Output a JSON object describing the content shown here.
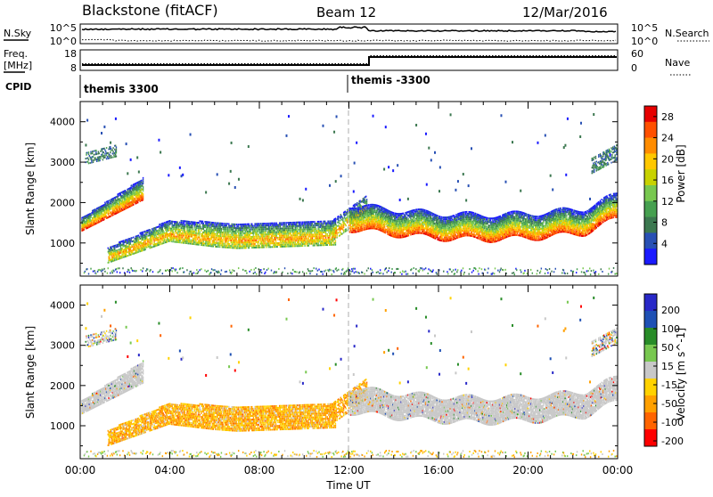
{
  "header": {
    "title": "Blackstone (fitACF)",
    "beam": "Beam 12",
    "date": "12/Mar/2016"
  },
  "nsky_panel": {
    "left_label": "N.Sky",
    "left_ticks": [
      "10^5",
      "10^0"
    ],
    "right_ticks": [
      "10^5",
      "10^0"
    ],
    "right_label": "N.Search"
  },
  "freq_panel": {
    "left_label_line1": "Freq.",
    "left_label_line2": "[MHz]",
    "left_ticks": [
      "18",
      "8"
    ],
    "right_ticks": [
      "60",
      "0"
    ],
    "right_label": "Nave"
  },
  "cpid_panel": {
    "label": "CPID",
    "segments": [
      {
        "start_hour": 0.0,
        "label": "themis 3300"
      },
      {
        "start_hour": 12.0,
        "label": "themis -3300"
      }
    ]
  },
  "colors": {
    "power_scale": [
      "#1a1aff",
      "#2850b4",
      "#3c7850",
      "#46a050",
      "#78c850",
      "#c8d200",
      "#ffc800",
      "#ff8c00",
      "#ff5000",
      "#e60000"
    ],
    "velocity_scale": [
      "#ff0000",
      "#ff6400",
      "#ffa000",
      "#ffd200",
      "#c8c8c8",
      "#78c850",
      "#288c28",
      "#1e50b4",
      "#2828c8"
    ],
    "ground_scatter": "#c8c8c8"
  },
  "chart_data": [
    {
      "type": "heatmap",
      "name": "power_panel",
      "xlabel": "",
      "ylabel": "Slant Range [km]",
      "xlim": [
        0,
        24
      ],
      "ylim": [
        180,
        4500
      ],
      "yticks": [
        "1000",
        "2000",
        "3000",
        "4000"
      ],
      "colorbar": {
        "label": "Power [dB]",
        "ticks": [
          "4",
          "8",
          "12",
          "16",
          "20",
          "24",
          "28"
        ],
        "range": [
          0,
          30
        ]
      },
      "vline_hour": 12.0
    },
    {
      "type": "heatmap",
      "name": "velocity_panel",
      "xlabel": "Time UT",
      "ylabel": "Slant Range [km]",
      "xlim": [
        0,
        24
      ],
      "ylim": [
        180,
        4500
      ],
      "yticks": [
        "1000",
        "2000",
        "3000",
        "4000"
      ],
      "xticks": [
        "00:00",
        "04:00",
        "08:00",
        "12:00",
        "16:00",
        "20:00",
        "00:00"
      ],
      "colorbar": {
        "label": "Velocity [m s^-1]",
        "ticks": [
          "200",
          "100",
          "50",
          "15",
          "-15",
          "-50",
          "-100",
          "-200"
        ]
      },
      "vline_hour": 12.0
    }
  ]
}
